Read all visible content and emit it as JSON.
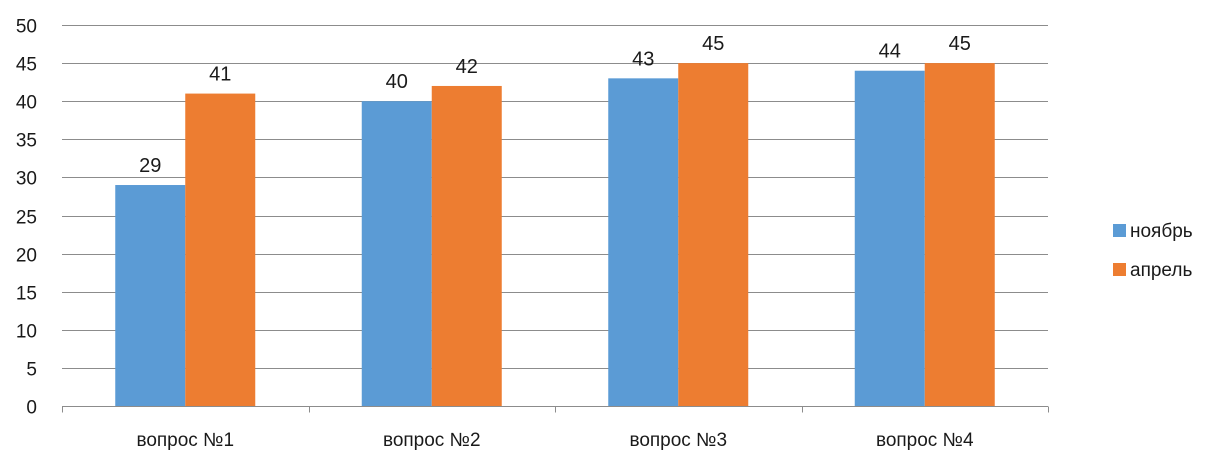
{
  "chart_data": {
    "type": "bar",
    "categories": [
      "вопрос №1",
      "вопрос №2",
      "вопрос №3",
      "вопрос №4"
    ],
    "series": [
      {
        "name": "ноябрь",
        "values": [
          29,
          40,
          43,
          44
        ],
        "color": "#5B9BD5"
      },
      {
        "name": "апрель",
        "values": [
          41,
          42,
          45,
          45
        ],
        "color": "#ED7D31"
      }
    ],
    "ylim": [
      0,
      50
    ],
    "yticks": [
      0,
      5,
      10,
      15,
      20,
      25,
      30,
      35,
      40,
      45,
      50
    ],
    "grid": true,
    "gridColor": "#8c8c8c",
    "legend": "right",
    "data_labels": true
  }
}
